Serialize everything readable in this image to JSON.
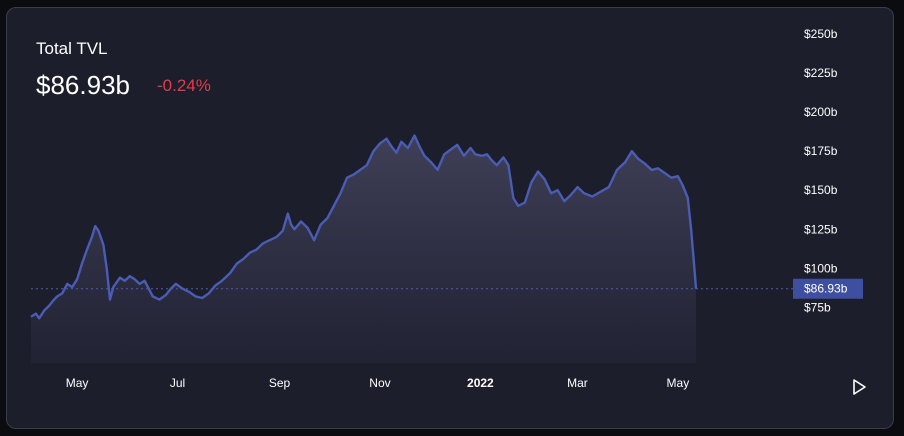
{
  "header": {
    "title": "Total TVL",
    "value": "$86.93b",
    "change": "-0.24%"
  },
  "colors": {
    "line": "#4a5cb3",
    "change_negative": "#e53a4c",
    "current_label_bg": "#3f4fa0"
  },
  "icons": {
    "play": "play-icon"
  },
  "chart_data": {
    "type": "area",
    "title": "Total TVL",
    "xlabel": "",
    "ylabel": "",
    "unit": "USD billions",
    "x_range": [
      "2021-04-03",
      "2022-05-12"
    ],
    "ylim": [
      65,
      250
    ],
    "y_ticks": [
      75,
      100,
      125,
      150,
      175,
      200,
      225,
      250
    ],
    "y_tick_labels": [
      "$75b",
      "$100b",
      "$125b",
      "$150b",
      "$175b",
      "$200b",
      "$225b",
      "$250b"
    ],
    "x_ticks": [
      {
        "date": "2021-05-01",
        "label": "May",
        "bold": false
      },
      {
        "date": "2021-07-01",
        "label": "Jul",
        "bold": false
      },
      {
        "date": "2021-09-01",
        "label": "Sep",
        "bold": false
      },
      {
        "date": "2021-11-01",
        "label": "Nov",
        "bold": false
      },
      {
        "date": "2022-01-01",
        "label": "2022",
        "bold": true
      },
      {
        "date": "2022-03-01",
        "label": "Mar",
        "bold": false
      },
      {
        "date": "2022-05-01",
        "label": "May",
        "bold": false
      }
    ],
    "y_axis_position": "right",
    "grid": false,
    "current": {
      "value": 86.93,
      "label": "$86.93b"
    },
    "series": [
      {
        "values": [
          [
            "2021-04-03",
            69
          ],
          [
            "2021-04-06",
            71
          ],
          [
            "2021-04-08",
            68
          ],
          [
            "2021-04-11",
            73
          ],
          [
            "2021-04-14",
            76
          ],
          [
            "2021-04-17",
            80
          ],
          [
            "2021-04-19",
            82
          ],
          [
            "2021-04-22",
            84
          ],
          [
            "2021-04-25",
            90
          ],
          [
            "2021-04-28",
            88
          ],
          [
            "2021-05-01",
            93
          ],
          [
            "2021-05-04",
            103
          ],
          [
            "2021-05-07",
            112
          ],
          [
            "2021-05-10",
            120
          ],
          [
            "2021-05-12",
            127
          ],
          [
            "2021-05-14",
            124
          ],
          [
            "2021-05-17",
            115
          ],
          [
            "2021-05-19",
            100
          ],
          [
            "2021-05-21",
            80
          ],
          [
            "2021-05-23",
            88
          ],
          [
            "2021-05-27",
            94
          ],
          [
            "2021-05-30",
            92
          ],
          [
            "2021-06-02",
            95
          ],
          [
            "2021-06-05",
            93
          ],
          [
            "2021-06-08",
            90
          ],
          [
            "2021-06-11",
            92
          ],
          [
            "2021-06-13",
            88
          ],
          [
            "2021-06-16",
            82
          ],
          [
            "2021-06-20",
            80
          ],
          [
            "2021-06-24",
            83
          ],
          [
            "2021-06-27",
            87
          ],
          [
            "2021-06-30",
            90
          ],
          [
            "2021-07-04",
            87
          ],
          [
            "2021-07-08",
            85
          ],
          [
            "2021-07-12",
            82
          ],
          [
            "2021-07-16",
            81
          ],
          [
            "2021-07-20",
            84
          ],
          [
            "2021-07-24",
            89
          ],
          [
            "2021-07-28",
            92
          ],
          [
            "2021-08-02",
            97
          ],
          [
            "2021-08-06",
            103
          ],
          [
            "2021-08-10",
            106
          ],
          [
            "2021-08-14",
            110
          ],
          [
            "2021-08-18",
            112
          ],
          [
            "2021-08-22",
            116
          ],
          [
            "2021-08-26",
            118
          ],
          [
            "2021-08-30",
            120
          ],
          [
            "2021-09-03",
            124
          ],
          [
            "2021-09-06",
            135
          ],
          [
            "2021-09-08",
            128
          ],
          [
            "2021-09-10",
            125
          ],
          [
            "2021-09-14",
            130
          ],
          [
            "2021-09-18",
            126
          ],
          [
            "2021-09-22",
            118
          ],
          [
            "2021-09-26",
            128
          ],
          [
            "2021-09-30",
            132
          ],
          [
            "2021-10-04",
            140
          ],
          [
            "2021-10-08",
            148
          ],
          [
            "2021-10-12",
            158
          ],
          [
            "2021-10-16",
            160
          ],
          [
            "2021-10-20",
            163
          ],
          [
            "2021-10-24",
            166
          ],
          [
            "2021-10-28",
            175
          ],
          [
            "2021-11-01",
            180
          ],
          [
            "2021-11-05",
            183
          ],
          [
            "2021-11-08",
            178
          ],
          [
            "2021-11-11",
            174
          ],
          [
            "2021-11-14",
            181
          ],
          [
            "2021-11-18",
            177
          ],
          [
            "2021-11-22",
            185
          ],
          [
            "2021-11-25",
            178
          ],
          [
            "2021-11-28",
            172
          ],
          [
            "2021-12-02",
            168
          ],
          [
            "2021-12-06",
            163
          ],
          [
            "2021-12-10",
            173
          ],
          [
            "2021-12-14",
            176
          ],
          [
            "2021-12-18",
            179
          ],
          [
            "2021-12-22",
            172
          ],
          [
            "2021-12-26",
            177
          ],
          [
            "2021-12-29",
            173
          ],
          [
            "2022-01-02",
            172
          ],
          [
            "2022-01-05",
            173
          ],
          [
            "2022-01-08",
            169
          ],
          [
            "2022-01-11",
            166
          ],
          [
            "2022-01-15",
            171
          ],
          [
            "2022-01-18",
            166
          ],
          [
            "2022-01-21",
            145
          ],
          [
            "2022-01-24",
            140
          ],
          [
            "2022-01-28",
            142
          ],
          [
            "2022-02-01",
            155
          ],
          [
            "2022-02-05",
            162
          ],
          [
            "2022-02-09",
            157
          ],
          [
            "2022-02-13",
            148
          ],
          [
            "2022-02-17",
            150
          ],
          [
            "2022-02-21",
            143
          ],
          [
            "2022-02-25",
            147
          ],
          [
            "2022-03-01",
            152
          ],
          [
            "2022-03-05",
            148
          ],
          [
            "2022-03-10",
            146
          ],
          [
            "2022-03-15",
            149
          ],
          [
            "2022-03-20",
            152
          ],
          [
            "2022-03-25",
            163
          ],
          [
            "2022-03-30",
            168
          ],
          [
            "2022-04-03",
            175
          ],
          [
            "2022-04-07",
            170
          ],
          [
            "2022-04-11",
            167
          ],
          [
            "2022-04-15",
            163
          ],
          [
            "2022-04-19",
            164
          ],
          [
            "2022-04-23",
            161
          ],
          [
            "2022-04-27",
            158
          ],
          [
            "2022-05-01",
            159
          ],
          [
            "2022-05-04",
            153
          ],
          [
            "2022-05-07",
            145
          ],
          [
            "2022-05-09",
            125
          ],
          [
            "2022-05-11",
            100
          ],
          [
            "2022-05-12",
            86.93
          ]
        ]
      }
    ]
  }
}
